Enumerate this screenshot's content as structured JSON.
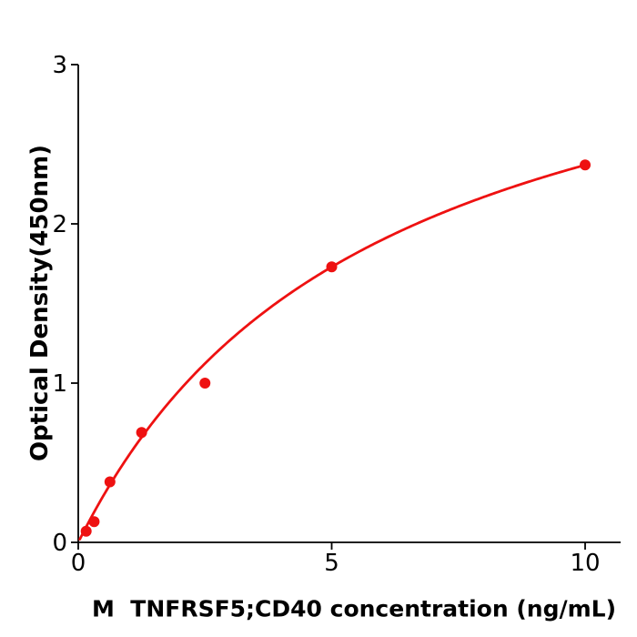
{
  "figure": {
    "background": "#ffffff"
  },
  "chart_data": {
    "type": "scatter",
    "title": "",
    "xlabel": "M  TNFRSF5;CD40 concentration (ng/mL)",
    "ylabel": "Optical Density(450nm)",
    "x": [
      0.156,
      0.313,
      0.625,
      1.25,
      2.5,
      5,
      10
    ],
    "y": [
      0.07,
      0.13,
      0.38,
      0.69,
      1.0,
      1.73,
      2.37
    ],
    "xticks": [
      0,
      5,
      10
    ],
    "yticks": [
      0,
      1,
      2,
      3
    ],
    "xlim": [
      0,
      10.7
    ],
    "ylim": [
      0,
      3
    ],
    "grid": false,
    "legend": null,
    "marker": "circle",
    "marker_color": "#ee1111",
    "curve_color": "#ee1111",
    "axis_color": "#000000",
    "fit": {
      "model": "saturation (Michaelis-Menten / 4PL-like)",
      "formula": "OD = Vmax * x / (Km + x)",
      "vmax": 3.76,
      "km": 5.87,
      "x_start": 0.03,
      "x_end": 10
    }
  }
}
